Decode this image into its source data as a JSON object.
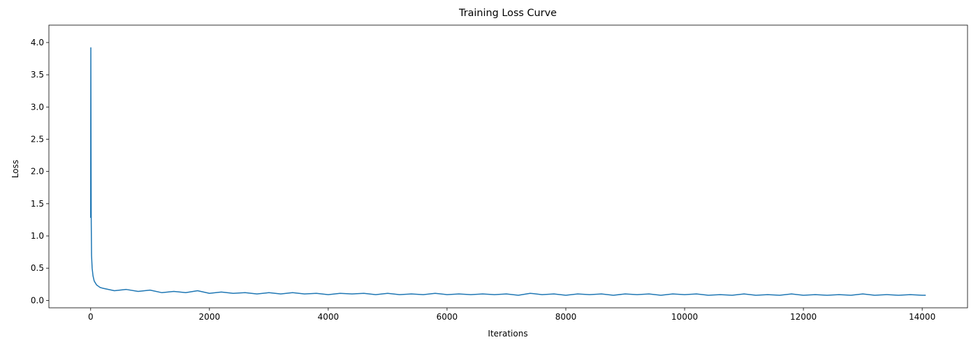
{
  "chart_data": {
    "type": "line",
    "title": "Training Loss Curve",
    "x_label": "Iterations",
    "y_label": "Loss",
    "color": "#1f77b4",
    "x": [
      0,
      3,
      6,
      10,
      15,
      25,
      40,
      60,
      80,
      100,
      130,
      160,
      200,
      400,
      600,
      800,
      1000,
      1200,
      1400,
      1600,
      1800,
      2000,
      2200,
      2400,
      2600,
      2800,
      3000,
      3200,
      3400,
      3600,
      3800,
      4000,
      4200,
      4400,
      4600,
      4800,
      5000,
      5200,
      5400,
      5600,
      5800,
      6000,
      6200,
      6400,
      6600,
      6800,
      7000,
      7200,
      7400,
      7600,
      7800,
      8000,
      8200,
      8400,
      8600,
      8800,
      9000,
      9200,
      9400,
      9600,
      9800,
      10000,
      10200,
      10400,
      10600,
      10800,
      11000,
      11200,
      11400,
      11600,
      11800,
      12000,
      12200,
      12400,
      12600,
      12800,
      13000,
      13200,
      13400,
      13600,
      13800,
      14000,
      14060
    ],
    "values": [
      1.28,
      3.92,
      2.6,
      1.2,
      0.7,
      0.5,
      0.38,
      0.3,
      0.27,
      0.24,
      0.22,
      0.2,
      0.19,
      0.15,
      0.17,
      0.14,
      0.16,
      0.12,
      0.14,
      0.12,
      0.15,
      0.11,
      0.13,
      0.11,
      0.12,
      0.1,
      0.12,
      0.1,
      0.12,
      0.1,
      0.11,
      0.09,
      0.11,
      0.1,
      0.11,
      0.09,
      0.11,
      0.09,
      0.1,
      0.09,
      0.11,
      0.09,
      0.1,
      0.09,
      0.1,
      0.09,
      0.1,
      0.08,
      0.11,
      0.09,
      0.1,
      0.08,
      0.1,
      0.09,
      0.1,
      0.08,
      0.1,
      0.09,
      0.1,
      0.08,
      0.1,
      0.09,
      0.1,
      0.08,
      0.09,
      0.08,
      0.1,
      0.08,
      0.09,
      0.08,
      0.1,
      0.08,
      0.09,
      0.08,
      0.09,
      0.08,
      0.1,
      0.08,
      0.09,
      0.08,
      0.09,
      0.08,
      0.08
    ],
    "xlim": [
      -703,
      14763
    ],
    "xticks": [
      0,
      2000,
      4000,
      6000,
      8000,
      10000,
      12000,
      14000
    ],
    "ylim": [
      -0.115,
      4.27
    ],
    "yticks": [
      {
        "value": 0,
        "label": "0.0"
      },
      {
        "value": 0.5,
        "label": "0.5"
      },
      {
        "value": 1,
        "label": "1.0"
      },
      {
        "value": 1.5,
        "label": "1.5"
      },
      {
        "value": 2,
        "label": "2.0"
      },
      {
        "value": 2.5,
        "label": "2.5"
      },
      {
        "value": 3,
        "label": "3.0"
      },
      {
        "value": 3.5,
        "label": "3.5"
      },
      {
        "value": 4,
        "label": "4.0"
      }
    ]
  }
}
